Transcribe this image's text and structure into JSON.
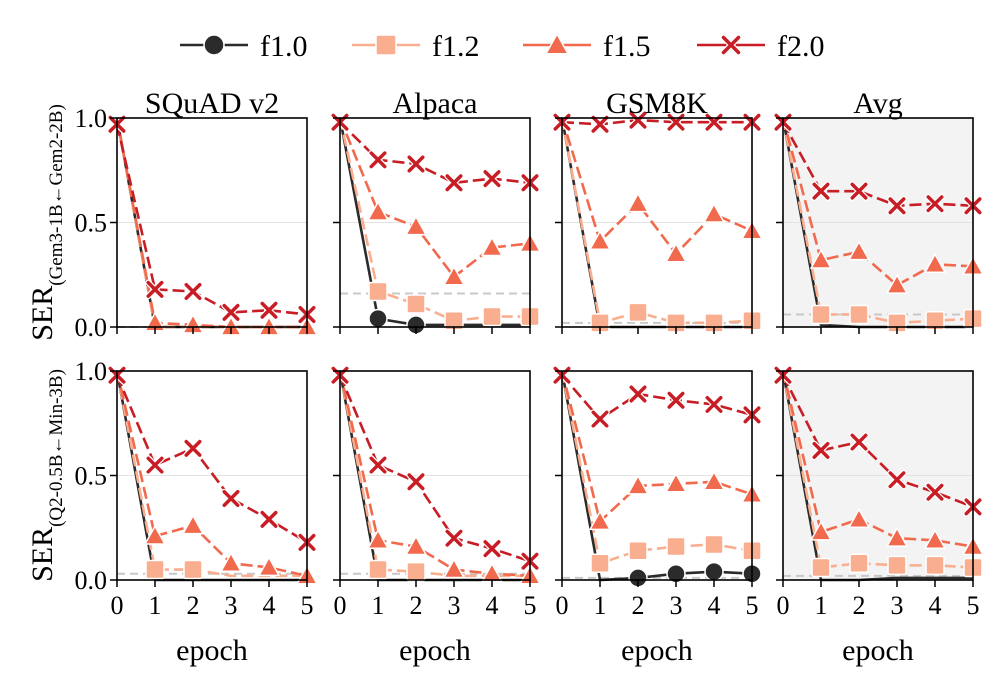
{
  "legend": [
    {
      "label": "f1.0",
      "color": "#2b2b2b",
      "marker": "circle"
    },
    {
      "label": "f1.2",
      "color": "#f9ae8f",
      "marker": "square"
    },
    {
      "label": "f1.5",
      "color": "#f26a4d",
      "marker": "triangle"
    },
    {
      "label": "f2.0",
      "color": "#c81d25",
      "marker": "x"
    }
  ],
  "row_labels": [
    {
      "main": "SER",
      "sub": "(Gem3-1B←Gem2-2B)"
    },
    {
      "main": "SER",
      "sub": "(Q2-0.5B←Min-3B)"
    }
  ],
  "xlabel": "epoch",
  "x_ticks": [
    "0",
    "1",
    "2",
    "3",
    "4",
    "5"
  ],
  "y_ticks": [
    "0.0",
    "0.5",
    "1.0"
  ],
  "chart_data": [
    {
      "type": "line",
      "title": "SQuAD v2",
      "row": 0,
      "col": 0,
      "x": [
        0,
        1,
        2,
        3,
        4,
        5
      ],
      "ylim": [
        0,
        1
      ],
      "xlim": [
        0,
        5
      ],
      "baseline": 0.0,
      "shaded": false,
      "series": [
        {
          "name": "f1.0",
          "values": [
            1.0,
            0.0,
            0.0,
            0.0,
            0.0,
            0.0
          ],
          "markers": [
            false,
            false,
            false,
            false,
            false,
            false
          ]
        },
        {
          "name": "f1.2",
          "values": [
            1.0,
            0.0,
            0.0,
            0.0,
            0.0,
            0.0
          ],
          "markers": [
            false,
            false,
            false,
            false,
            false,
            false
          ]
        },
        {
          "name": "f1.5",
          "values": [
            1.0,
            0.02,
            0.01,
            0.0,
            0.0,
            0.0
          ],
          "markers": [
            false,
            true,
            true,
            true,
            true,
            true
          ]
        },
        {
          "name": "f2.0",
          "values": [
            0.97,
            0.18,
            0.17,
            0.07,
            0.08,
            0.06
          ],
          "markers": [
            true,
            true,
            true,
            true,
            true,
            true
          ]
        }
      ]
    },
    {
      "type": "line",
      "title": "Alpaca",
      "row": 0,
      "col": 1,
      "x": [
        0,
        1,
        2,
        3,
        4,
        5
      ],
      "ylim": [
        0,
        1
      ],
      "xlim": [
        0,
        5
      ],
      "baseline": 0.16,
      "shaded": false,
      "series": [
        {
          "name": "f1.0",
          "values": [
            1.0,
            0.04,
            0.01,
            0.01,
            0.01,
            0.01
          ],
          "markers": [
            false,
            true,
            true,
            false,
            false,
            false
          ]
        },
        {
          "name": "f1.2",
          "values": [
            1.0,
            0.17,
            0.11,
            0.03,
            0.05,
            0.05
          ],
          "markers": [
            false,
            true,
            true,
            true,
            true,
            true
          ]
        },
        {
          "name": "f1.5",
          "values": [
            1.0,
            0.55,
            0.48,
            0.24,
            0.38,
            0.4
          ],
          "markers": [
            false,
            true,
            true,
            true,
            true,
            true
          ]
        },
        {
          "name": "f2.0",
          "values": [
            0.98,
            0.8,
            0.78,
            0.69,
            0.71,
            0.69
          ],
          "markers": [
            true,
            true,
            true,
            true,
            true,
            true
          ]
        }
      ]
    },
    {
      "type": "line",
      "title": "GSM8K",
      "row": 0,
      "col": 2,
      "x": [
        0,
        1,
        2,
        3,
        4,
        5
      ],
      "ylim": [
        0,
        1
      ],
      "xlim": [
        0,
        5
      ],
      "baseline": 0.02,
      "shaded": false,
      "series": [
        {
          "name": "f1.0",
          "values": [
            1.0,
            0.0,
            0.0,
            0.0,
            0.0,
            0.0
          ],
          "markers": [
            false,
            false,
            false,
            false,
            false,
            false
          ]
        },
        {
          "name": "f1.2",
          "values": [
            1.0,
            0.02,
            0.07,
            0.02,
            0.02,
            0.03
          ],
          "markers": [
            false,
            true,
            true,
            true,
            true,
            true
          ]
        },
        {
          "name": "f1.5",
          "values": [
            1.0,
            0.41,
            0.59,
            0.35,
            0.54,
            0.46
          ],
          "markers": [
            false,
            true,
            true,
            true,
            true,
            true
          ]
        },
        {
          "name": "f2.0",
          "values": [
            0.98,
            0.97,
            0.99,
            0.98,
            0.98,
            0.98
          ],
          "markers": [
            true,
            true,
            true,
            true,
            true,
            true
          ]
        }
      ]
    },
    {
      "type": "line",
      "title": "Avg",
      "row": 0,
      "col": 3,
      "x": [
        0,
        1,
        2,
        3,
        4,
        5
      ],
      "ylim": [
        0,
        1
      ],
      "xlim": [
        0,
        5
      ],
      "baseline": 0.06,
      "shaded": true,
      "series": [
        {
          "name": "f1.0",
          "values": [
            1.0,
            0.01,
            0.0,
            0.0,
            0.0,
            0.0
          ],
          "markers": [
            false,
            false,
            false,
            false,
            false,
            false
          ]
        },
        {
          "name": "f1.2",
          "values": [
            1.0,
            0.06,
            0.06,
            0.02,
            0.03,
            0.04
          ],
          "markers": [
            false,
            true,
            true,
            true,
            true,
            true
          ]
        },
        {
          "name": "f1.5",
          "values": [
            1.0,
            0.32,
            0.36,
            0.2,
            0.3,
            0.29
          ],
          "markers": [
            false,
            true,
            true,
            true,
            true,
            true
          ]
        },
        {
          "name": "f2.0",
          "values": [
            0.98,
            0.65,
            0.65,
            0.58,
            0.59,
            0.58
          ],
          "markers": [
            true,
            true,
            true,
            true,
            true,
            true
          ]
        }
      ]
    },
    {
      "type": "line",
      "title": "",
      "row": 1,
      "col": 0,
      "x": [
        0,
        1,
        2,
        3,
        4,
        5
      ],
      "ylim": [
        0,
        1
      ],
      "xlim": [
        0,
        5
      ],
      "baseline": 0.03,
      "shaded": false,
      "series": [
        {
          "name": "f1.0",
          "values": [
            1.0,
            0.0,
            0.0,
            0.0,
            0.0,
            0.0
          ],
          "markers": [
            false,
            false,
            false,
            false,
            false,
            false
          ]
        },
        {
          "name": "f1.2",
          "values": [
            1.0,
            0.05,
            0.05,
            0.02,
            0.02,
            0.02
          ],
          "markers": [
            false,
            true,
            true,
            false,
            false,
            false
          ]
        },
        {
          "name": "f1.5",
          "values": [
            1.0,
            0.21,
            0.26,
            0.08,
            0.06,
            0.02
          ],
          "markers": [
            false,
            true,
            true,
            true,
            true,
            true
          ]
        },
        {
          "name": "f2.0",
          "values": [
            0.98,
            0.55,
            0.63,
            0.39,
            0.29,
            0.18
          ],
          "markers": [
            true,
            true,
            true,
            true,
            true,
            true
          ]
        }
      ]
    },
    {
      "type": "line",
      "title": "",
      "row": 1,
      "col": 1,
      "x": [
        0,
        1,
        2,
        3,
        4,
        5
      ],
      "ylim": [
        0,
        1
      ],
      "xlim": [
        0,
        5
      ],
      "baseline": 0.03,
      "shaded": false,
      "series": [
        {
          "name": "f1.0",
          "values": [
            1.0,
            0.0,
            0.0,
            0.0,
            0.0,
            0.0
          ],
          "markers": [
            false,
            false,
            false,
            false,
            false,
            false
          ]
        },
        {
          "name": "f1.2",
          "values": [
            1.0,
            0.05,
            0.04,
            0.02,
            0.02,
            0.02
          ],
          "markers": [
            false,
            true,
            true,
            false,
            false,
            false
          ]
        },
        {
          "name": "f1.5",
          "values": [
            1.0,
            0.19,
            0.16,
            0.05,
            0.03,
            0.02
          ],
          "markers": [
            false,
            true,
            true,
            true,
            true,
            true
          ]
        },
        {
          "name": "f2.0",
          "values": [
            0.98,
            0.55,
            0.47,
            0.2,
            0.15,
            0.09
          ],
          "markers": [
            true,
            true,
            true,
            true,
            true,
            true
          ]
        }
      ]
    },
    {
      "type": "line",
      "title": "",
      "row": 1,
      "col": 2,
      "x": [
        0,
        1,
        2,
        3,
        4,
        5
      ],
      "ylim": [
        0,
        1
      ],
      "xlim": [
        0,
        5
      ],
      "baseline": 0.01,
      "shaded": false,
      "series": [
        {
          "name": "f1.0",
          "values": [
            1.0,
            0.0,
            0.01,
            0.03,
            0.04,
            0.03
          ],
          "markers": [
            false,
            false,
            true,
            true,
            true,
            true
          ]
        },
        {
          "name": "f1.2",
          "values": [
            1.0,
            0.08,
            0.14,
            0.16,
            0.17,
            0.14
          ],
          "markers": [
            false,
            true,
            true,
            true,
            true,
            true
          ]
        },
        {
          "name": "f1.5",
          "values": [
            1.0,
            0.28,
            0.45,
            0.46,
            0.47,
            0.41
          ],
          "markers": [
            false,
            true,
            true,
            true,
            true,
            true
          ]
        },
        {
          "name": "f2.0",
          "values": [
            0.98,
            0.77,
            0.89,
            0.86,
            0.84,
            0.79
          ],
          "markers": [
            true,
            true,
            true,
            true,
            true,
            true
          ]
        }
      ]
    },
    {
      "type": "line",
      "title": "",
      "row": 1,
      "col": 3,
      "x": [
        0,
        1,
        2,
        3,
        4,
        5
      ],
      "ylim": [
        0,
        1
      ],
      "xlim": [
        0,
        5
      ],
      "baseline": 0.02,
      "shaded": true,
      "series": [
        {
          "name": "f1.0",
          "values": [
            1.0,
            0.0,
            0.0,
            0.01,
            0.01,
            0.01
          ],
          "markers": [
            false,
            false,
            false,
            false,
            false,
            false
          ]
        },
        {
          "name": "f1.2",
          "values": [
            1.0,
            0.06,
            0.08,
            0.07,
            0.07,
            0.06
          ],
          "markers": [
            false,
            true,
            true,
            true,
            true,
            true
          ]
        },
        {
          "name": "f1.5",
          "values": [
            1.0,
            0.23,
            0.29,
            0.2,
            0.19,
            0.16
          ],
          "markers": [
            false,
            true,
            true,
            true,
            true,
            true
          ]
        },
        {
          "name": "f2.0",
          "values": [
            0.98,
            0.62,
            0.66,
            0.48,
            0.42,
            0.35
          ],
          "markers": [
            true,
            true,
            true,
            true,
            true,
            true
          ]
        }
      ]
    }
  ]
}
